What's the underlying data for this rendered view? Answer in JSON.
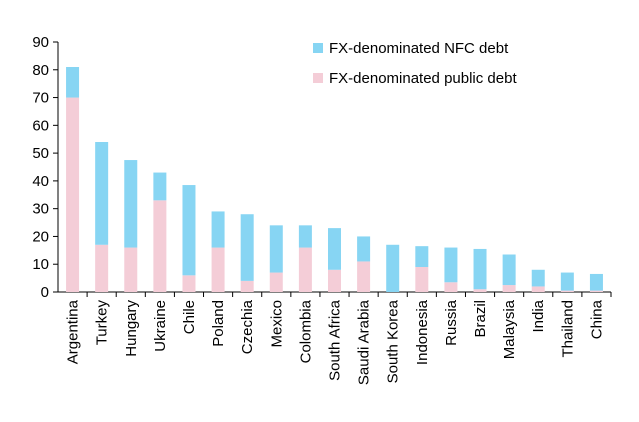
{
  "chart_data": {
    "type": "stacked-bar",
    "categories": [
      "Argentina",
      "Turkey",
      "Hungary",
      "Ukraine",
      "Chile",
      "Poland",
      "Czechia",
      "Mexico",
      "Colombia",
      "South Africa",
      "Saudi Arabia",
      "South Korea",
      "Indonesia",
      "Russia",
      "Brazil",
      "Malaysia",
      "India",
      "Thailand",
      "China"
    ],
    "series": [
      {
        "name": "FX-denominated NFC debt",
        "color": "#87d5f3",
        "values": [
          11,
          37,
          31.5,
          10,
          32.5,
          13,
          24,
          17,
          8,
          15,
          9,
          17,
          7.5,
          12.5,
          14.5,
          11,
          6,
          6.5,
          6
        ]
      },
      {
        "name": "FX-denominated public debt",
        "color": "#f4cdd7",
        "values": [
          70,
          17,
          16,
          33,
          6,
          16,
          4,
          7,
          16,
          8,
          11,
          0,
          9,
          3.5,
          1,
          2.5,
          2,
          0.5,
          0.5
        ]
      }
    ],
    "ylim": [
      0,
      90
    ],
    "yticks": [
      0,
      10,
      20,
      30,
      40,
      50,
      60,
      70,
      80,
      90
    ],
    "legend": "top-right"
  }
}
